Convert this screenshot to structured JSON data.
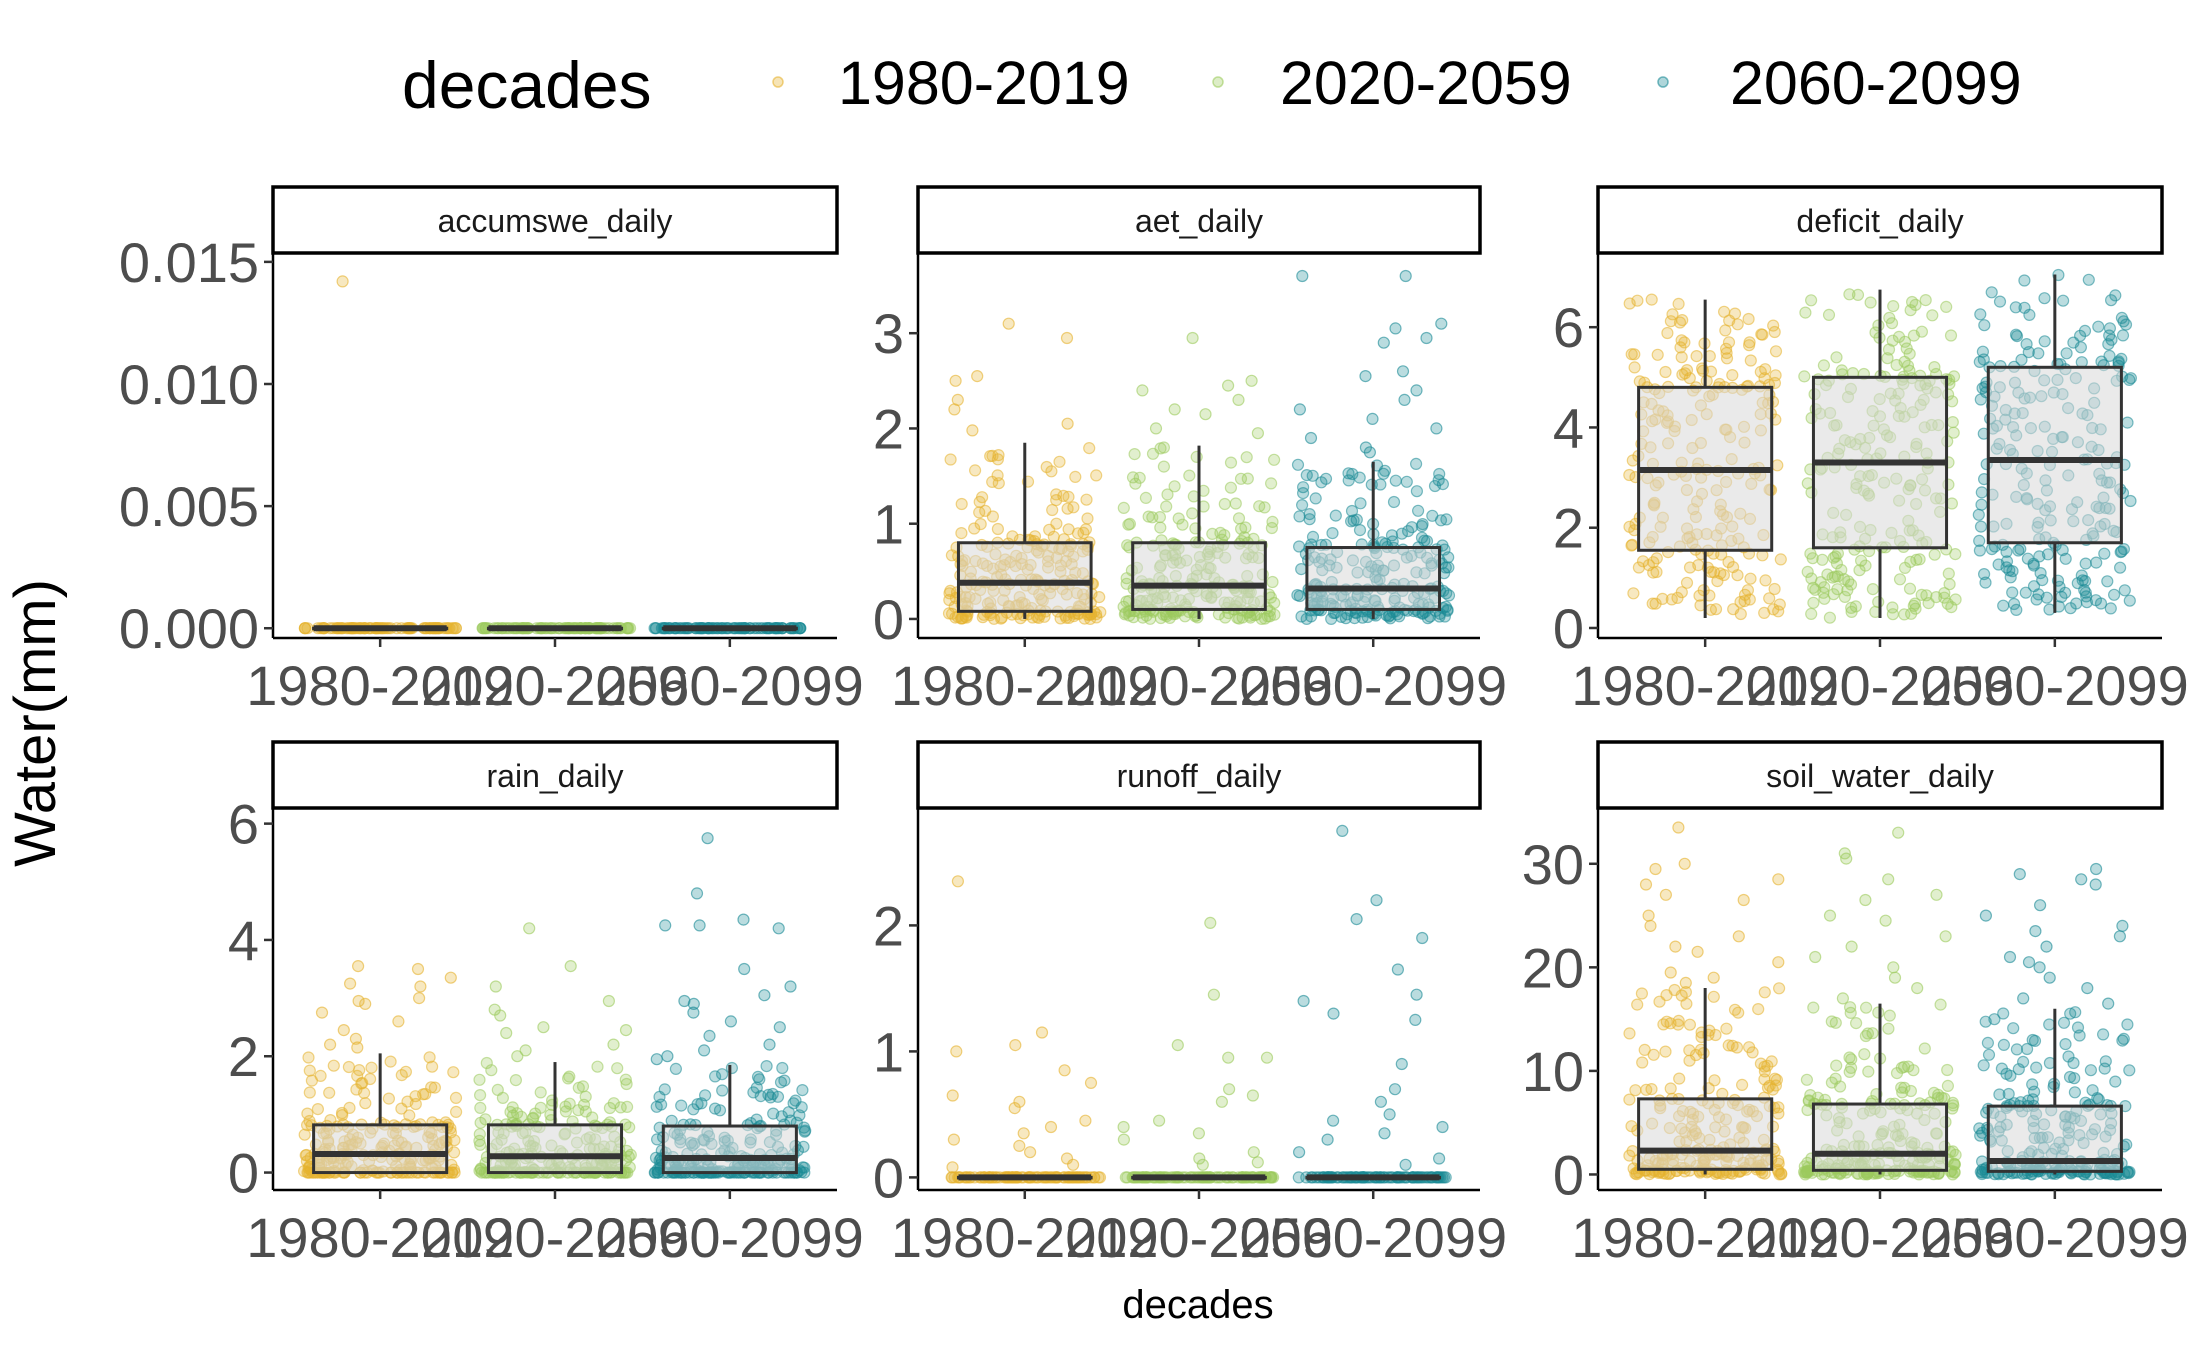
{
  "legend": {
    "title": "decades",
    "items": [
      {
        "label": "1980-2019",
        "color": "#E6B32E"
      },
      {
        "label": "2020-2059",
        "color": "#9DCB5E"
      },
      {
        "label": "2060-2099",
        "color": "#1B8A96"
      }
    ]
  },
  "axis_titles": {
    "y": "Water(mm)",
    "x": "decades"
  },
  "colors": {
    "box_fill": "#d9d9d9",
    "box_line": "#333333",
    "strip_border": "#000000"
  },
  "chart_data": {
    "type": "boxplot",
    "facets": [
      {
        "name": "accumswe_daily",
        "categories": [
          "1980-2019",
          "2020-2059",
          "2060-2099"
        ],
        "ylim": [
          -0.0004,
          0.0152
        ],
        "yticks": [
          0,
          0.005,
          0.01,
          0.015
        ],
        "ytick_labels": [
          "0.000",
          "0.005",
          "0.010",
          "0.015"
        ],
        "boxes": [
          {
            "q1": 0,
            "median": 0,
            "q3": 0,
            "lower": 0,
            "upper": 0
          },
          {
            "q1": 0,
            "median": 0,
            "q3": 0,
            "lower": 0,
            "upper": 0
          },
          {
            "q1": 0,
            "median": 0,
            "q3": 0,
            "lower": 0,
            "upper": 0
          }
        ],
        "outliers": [
          [
            0.0142
          ],
          [],
          []
        ]
      },
      {
        "name": "aet_daily",
        "categories": [
          "1980-2019",
          "2020-2059",
          "2060-2099"
        ],
        "ylim": [
          -0.2,
          3.8
        ],
        "yticks": [
          0,
          1,
          2,
          3
        ],
        "ytick_labels": [
          "0",
          "1",
          "2",
          "3"
        ],
        "boxes": [
          {
            "q1": 0.08,
            "median": 0.38,
            "q3": 0.8,
            "lower": 0,
            "upper": 1.85
          },
          {
            "q1": 0.1,
            "median": 0.35,
            "q3": 0.8,
            "lower": 0,
            "upper": 1.82
          },
          {
            "q1": 0.1,
            "median": 0.32,
            "q3": 0.75,
            "lower": 0,
            "upper": 1.65
          }
        ],
        "outliers": [
          [
            3.1,
            2.95,
            2.55,
            2.5,
            2.3,
            2.2,
            2.05,
            1.98
          ],
          [
            2.95,
            2.5,
            2.45,
            2.4,
            2.3,
            2.2,
            2.15,
            2.0,
            1.95
          ],
          [
            3.6,
            3.6,
            3.1,
            3.05,
            2.95,
            2.9,
            2.6,
            2.55,
            2.4,
            2.3,
            2.2,
            2.1,
            2.0,
            1.9,
            1.8,
            1.75
          ]
        ]
      },
      {
        "name": "deficit_daily",
        "categories": [
          "1980-2019",
          "2020-2059",
          "2060-2099"
        ],
        "ylim": [
          -0.2,
          7.4
        ],
        "yticks": [
          0,
          2,
          4,
          6
        ],
        "ytick_labels": [
          "0",
          "2",
          "4",
          "6"
        ],
        "boxes": [
          {
            "q1": 1.55,
            "median": 3.15,
            "q3": 4.8,
            "lower": 0.2,
            "upper": 6.55
          },
          {
            "q1": 1.6,
            "median": 3.3,
            "q3": 5.0,
            "lower": 0.2,
            "upper": 6.75
          },
          {
            "q1": 1.7,
            "median": 3.35,
            "q3": 5.2,
            "lower": 0.3,
            "upper": 7.05
          }
        ],
        "outliers": [
          [],
          [],
          []
        ]
      },
      {
        "name": "rain_daily",
        "categories": [
          "1980-2019",
          "2020-2059",
          "2060-2099"
        ],
        "ylim": [
          -0.3,
          6.2
        ],
        "yticks": [
          0,
          2,
          4,
          6
        ],
        "ytick_labels": [
          "0",
          "2",
          "4",
          "6"
        ],
        "boxes": [
          {
            "q1": 0,
            "median": 0.32,
            "q3": 0.82,
            "lower": 0,
            "upper": 2.05
          },
          {
            "q1": 0,
            "median": 0.28,
            "q3": 0.82,
            "lower": 0,
            "upper": 1.9
          },
          {
            "q1": 0,
            "median": 0.25,
            "q3": 0.8,
            "lower": 0,
            "upper": 1.85
          }
        ],
        "outliers": [
          [
            3.55,
            3.5,
            3.35,
            3.25,
            3.2,
            3.0,
            2.95,
            2.9,
            2.75,
            2.6,
            2.45,
            2.3,
            2.2,
            2.15
          ],
          [
            4.2,
            3.55,
            3.2,
            2.95,
            2.8,
            2.7,
            2.5,
            2.45,
            2.4,
            2.2,
            2.1,
            2.0
          ],
          [
            5.75,
            4.8,
            4.35,
            4.25,
            4.25,
            4.2,
            3.5,
            3.2,
            3.05,
            2.95,
            2.9,
            2.75,
            2.6,
            2.5,
            2.35,
            2.2,
            2.1,
            2.0,
            1.95
          ]
        ]
      },
      {
        "name": "runoff_daily",
        "categories": [
          "1980-2019",
          "2020-2059",
          "2060-2099"
        ],
        "ylim": [
          -0.1,
          2.9
        ],
        "yticks": [
          0,
          1,
          2
        ],
        "ytick_labels": [
          "0",
          "1",
          "2"
        ],
        "boxes": [
          {
            "q1": 0,
            "median": 0,
            "q3": 0,
            "lower": 0,
            "upper": 0
          },
          {
            "q1": 0,
            "median": 0,
            "q3": 0,
            "lower": 0,
            "upper": 0
          },
          {
            "q1": 0,
            "median": 0,
            "q3": 0,
            "lower": 0,
            "upper": 0
          }
        ],
        "outliers": [
          [
            2.35,
            1.15,
            1.05,
            1.0,
            0.85,
            0.75,
            0.65,
            0.6,
            0.55,
            0.45,
            0.4,
            0.35,
            0.3,
            0.25,
            0.2,
            0.15,
            0.1,
            0.08
          ],
          [
            2.02,
            1.45,
            1.05,
            0.95,
            0.95,
            0.7,
            0.65,
            0.6,
            0.45,
            0.4,
            0.35,
            0.3,
            0.2,
            0.15,
            0.12,
            0.1
          ],
          [
            2.75,
            2.2,
            2.05,
            1.9,
            1.65,
            1.45,
            1.4,
            1.3,
            1.25,
            0.9,
            0.7,
            0.6,
            0.5,
            0.45,
            0.4,
            0.35,
            0.3,
            0.2,
            0.15,
            0.1
          ]
        ]
      },
      {
        "name": "soil_water_daily",
        "categories": [
          "1980-2019",
          "2020-2059",
          "2060-2099"
        ],
        "ylim": [
          -1.5,
          35
        ],
        "yticks": [
          0,
          10,
          20,
          30
        ],
        "ytick_labels": [
          "0",
          "10",
          "20",
          "30"
        ],
        "boxes": [
          {
            "q1": 0.5,
            "median": 2.3,
            "q3": 7.3,
            "lower": 0,
            "upper": 18.0
          },
          {
            "q1": 0.4,
            "median": 2.0,
            "q3": 6.8,
            "lower": 0,
            "upper": 16.5
          },
          {
            "q1": 0.3,
            "median": 1.3,
            "q3": 6.6,
            "lower": 0,
            "upper": 16.0
          }
        ],
        "outliers": [
          [
            33.5,
            30.0,
            29.5,
            28.5,
            28.0,
            27.0,
            26.5,
            25.0,
            24.0,
            23.0,
            22.0,
            21.5,
            20.5,
            19.5,
            19.0,
            18.5
          ],
          [
            33.0,
            31.0,
            30.5,
            28.5,
            27.0,
            26.5,
            25.0,
            24.5,
            23.0,
            22.0,
            21.0,
            20.0,
            19.0,
            18.0,
            17.0
          ],
          [
            29.5,
            29.0,
            28.5,
            28.0,
            26.0,
            25.0,
            24.0,
            23.5,
            23.0,
            22.0,
            21.0,
            20.5,
            20.0,
            19.0,
            18.0,
            17.0,
            16.5
          ]
        ]
      }
    ]
  }
}
